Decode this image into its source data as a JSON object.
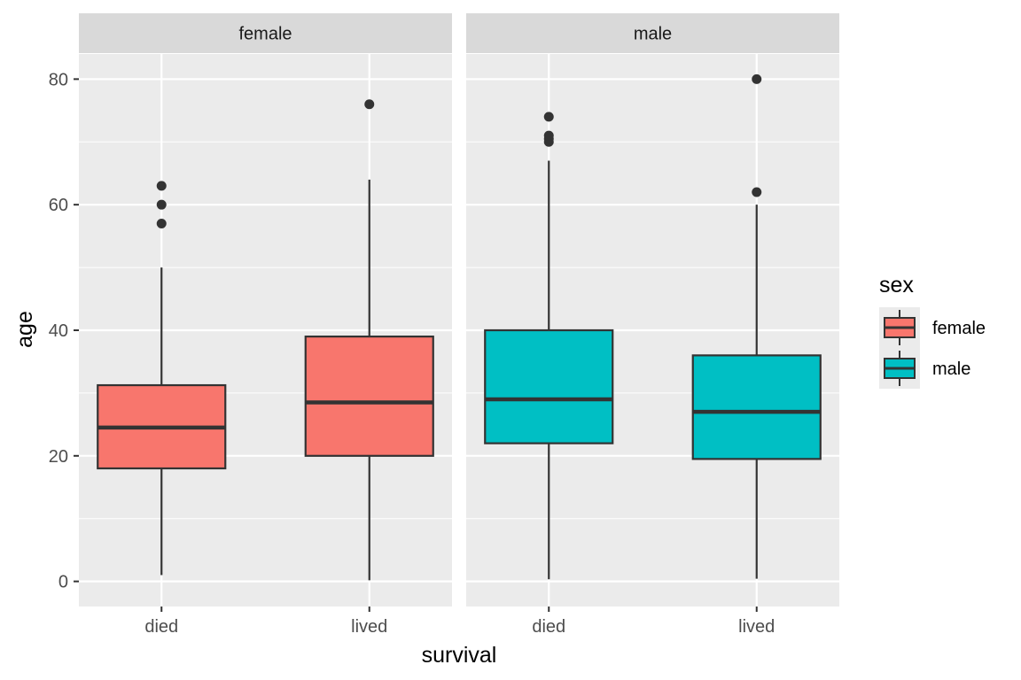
{
  "chart_data": {
    "type": "boxplot",
    "xlabel": "survival",
    "ylabel": "age",
    "categories": [
      "died",
      "lived"
    ],
    "ylim": [
      -4,
      84
    ],
    "y_ticks": [
      0,
      20,
      40,
      60,
      80
    ],
    "grid": true,
    "legend": {
      "title": "sex",
      "placement": "right",
      "entries": [
        {
          "label": "female",
          "color": "#F8766D"
        },
        {
          "label": "male",
          "color": "#00BFC4"
        }
      ]
    },
    "panels": [
      {
        "strip": "female",
        "fill": "#F8766D",
        "boxes": [
          {
            "category": "died",
            "min": 1,
            "q1": 18,
            "median": 24.5,
            "q3": 31.25,
            "max": 50,
            "outliers": [
              57,
              60,
              63
            ]
          },
          {
            "category": "lived",
            "min": 0.17,
            "q1": 20,
            "median": 28.5,
            "q3": 39,
            "max": 64,
            "outliers": [
              76
            ]
          }
        ]
      },
      {
        "strip": "male",
        "fill": "#00BFC4",
        "boxes": [
          {
            "category": "died",
            "min": 0.33,
            "q1": 22,
            "median": 29,
            "q3": 40,
            "max": 67,
            "outliers": [
              70,
              70.5,
              71,
              74
            ]
          },
          {
            "category": "lived",
            "min": 0.42,
            "q1": 19.5,
            "median": 27,
            "q3": 36,
            "max": 60,
            "outliers": [
              62,
              80
            ]
          }
        ]
      }
    ]
  }
}
